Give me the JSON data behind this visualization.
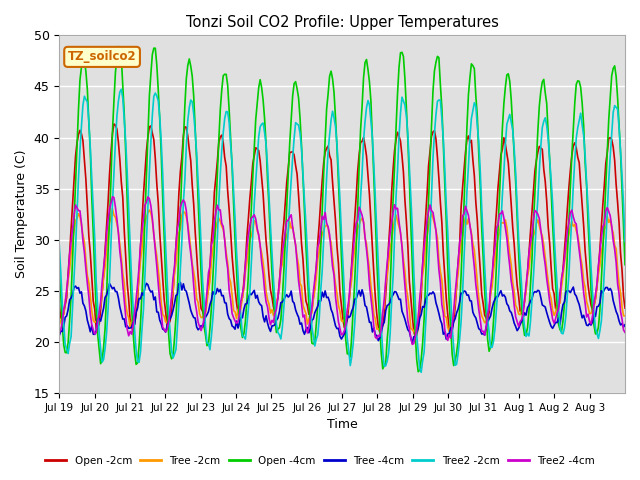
{
  "title": "Tonzi Soil CO2 Profile: Upper Temperatures",
  "ylabel": "Soil Temperature (C)",
  "xlabel": "Time",
  "ylim": [
    15,
    50
  ],
  "background_color": "#ffffff",
  "plot_bg_color": "#e0e0e0",
  "grid_color": "#ffffff",
  "label_box_text": "TZ_soilco2",
  "label_box_facecolor": "#ffffcc",
  "label_box_edgecolor": "#cc6600",
  "series": [
    {
      "label": "Open -2cm",
      "color": "#cc0000",
      "amp": 9,
      "base": 31,
      "phase": 0.0,
      "seed": 0
    },
    {
      "label": "Tree -2cm",
      "color": "#ff9900",
      "amp": 5,
      "base": 27,
      "phase": 0.05,
      "seed": 100
    },
    {
      "label": "Open -4cm",
      "color": "#00cc00",
      "amp": 14,
      "base": 33,
      "phase": -0.1,
      "seed": 200
    },
    {
      "label": "Tree -4cm",
      "color": "#0000cc",
      "amp": 2,
      "base": 23,
      "phase": 0.1,
      "seed": 300
    },
    {
      "label": "Tree2 -2cm",
      "color": "#00cccc",
      "amp": 12,
      "base": 31,
      "phase": -0.15,
      "seed": 400
    },
    {
      "label": "Tree2 -4cm",
      "color": "#cc00cc",
      "amp": 6,
      "base": 27,
      "phase": 0.08,
      "seed": 500
    }
  ],
  "x_tick_positions": [
    0,
    1,
    2,
    3,
    4,
    5,
    6,
    7,
    8,
    9,
    10,
    11,
    12,
    13,
    14,
    15
  ],
  "x_tick_labels": [
    "Jul 19",
    "Jul 20",
    "Jul 21",
    "Jul 22",
    "Jul 23",
    "Jul 24",
    "Jul 25",
    "Jul 26",
    "Jul 27",
    "Jul 28",
    "Jul 29",
    "Jul 30",
    "Jul 31",
    "Aug 1",
    "Aug 2",
    "Aug 3"
  ],
  "n_points": 384,
  "n_days": 16
}
